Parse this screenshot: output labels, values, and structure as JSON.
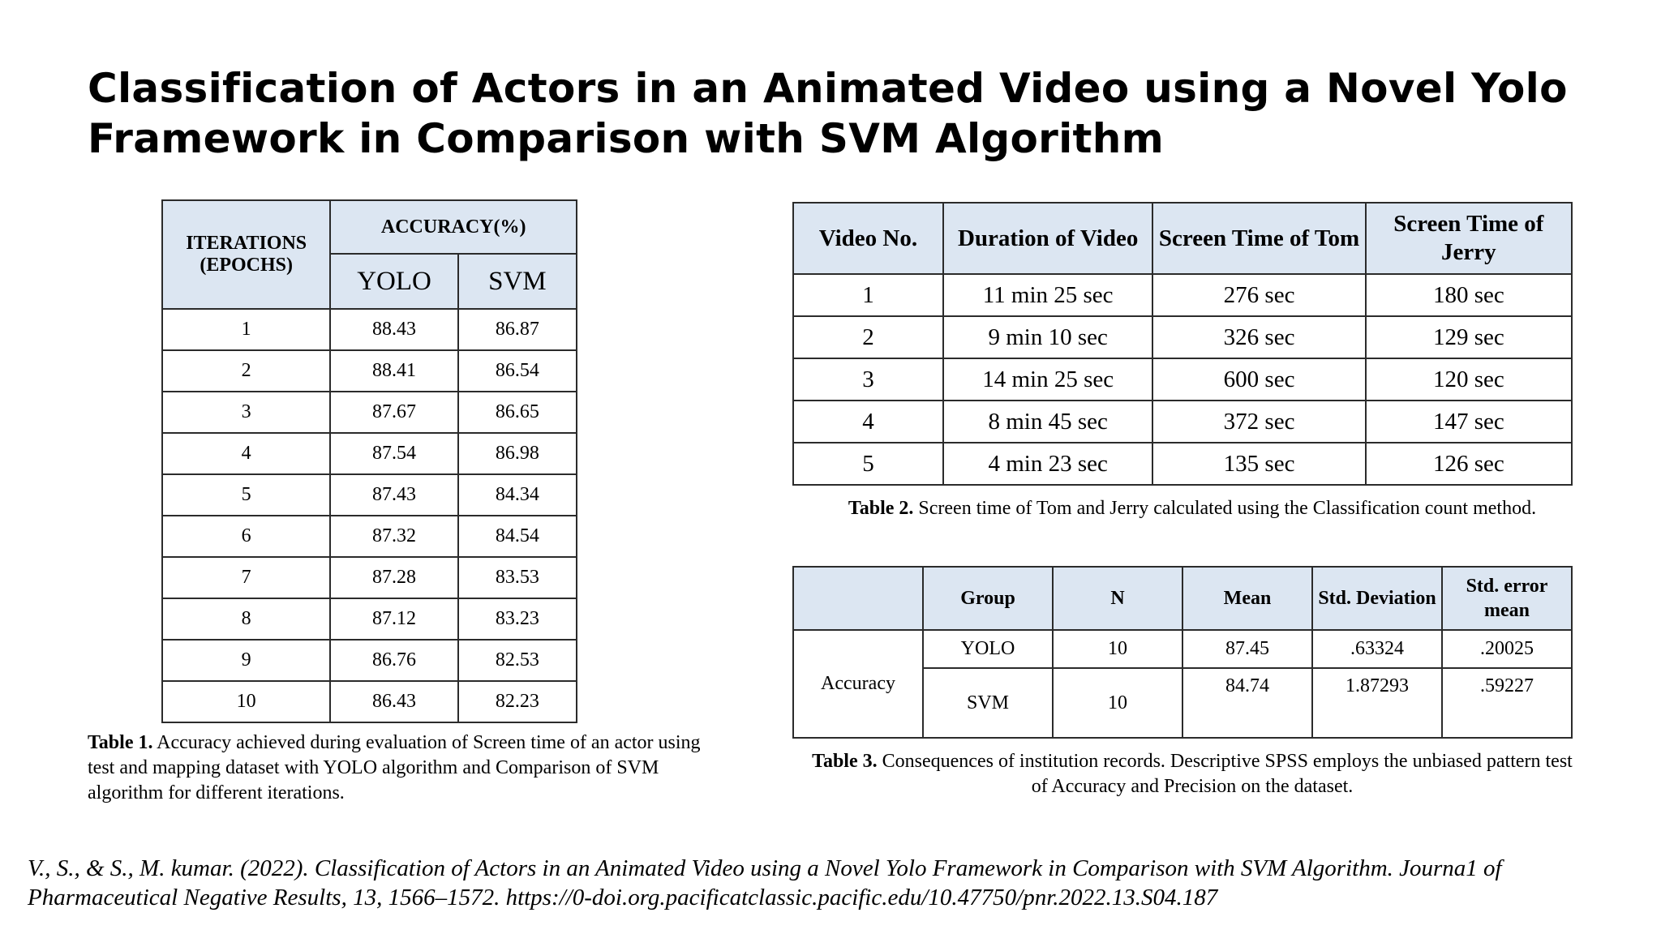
{
  "title": "Classification of Actors in an Animated Video using a Novel Yolo Framework in Comparison with SVM Algorithm",
  "table1": {
    "header_iterations": "ITERATIONS (EPOCHS)",
    "header_accuracy": "ACCURACY(%)",
    "header_yolo": "YOLO",
    "header_svm": "SVM",
    "rows": [
      {
        "iter": "1",
        "yolo": "88.43",
        "svm": "86.87"
      },
      {
        "iter": "2",
        "yolo": "88.41",
        "svm": "86.54"
      },
      {
        "iter": "3",
        "yolo": "87.67",
        "svm": "86.65"
      },
      {
        "iter": "4",
        "yolo": "87.54",
        "svm": "86.98"
      },
      {
        "iter": "5",
        "yolo": "87.43",
        "svm": "84.34"
      },
      {
        "iter": "6",
        "yolo": "87.32",
        "svm": "84.54"
      },
      {
        "iter": "7",
        "yolo": "87.28",
        "svm": "83.53"
      },
      {
        "iter": "8",
        "yolo": "87.12",
        "svm": "83.23"
      },
      {
        "iter": "9",
        "yolo": "86.76",
        "svm": "82.53"
      },
      {
        "iter": "10",
        "yolo": "86.43",
        "svm": "82.23"
      }
    ],
    "caption_label": "Table 1.",
    "caption_text": " Accuracy achieved during evaluation of Screen time of an actor using test and mapping dataset with YOLO algorithm and Comparison of SVM algorithm for different iterations."
  },
  "table2": {
    "headers": [
      "Video No.",
      "Duration of Video",
      "Screen Time of Tom",
      "Screen Time of Jerry"
    ],
    "rows": [
      [
        "1",
        "11 min 25 sec",
        "276 sec",
        "180 sec"
      ],
      [
        "2",
        "9 min 10 sec",
        "326 sec",
        "129 sec"
      ],
      [
        "3",
        "14 min 25 sec",
        "600 sec",
        "120 sec"
      ],
      [
        "4",
        "8 min 45 sec",
        "372 sec",
        "147 sec"
      ],
      [
        "5",
        "4 min 23 sec",
        "135 sec",
        "126 sec"
      ]
    ],
    "caption_label": "Table 2.",
    "caption_text": " Screen time of Tom and Jerry calculated using the Classification count method."
  },
  "table3": {
    "headers": [
      "",
      "Group",
      "N",
      "Mean",
      "Std. Deviation",
      "Std. error mean"
    ],
    "row_label": "Accuracy",
    "rows": [
      {
        "group": "YOLO",
        "n": "10",
        "mean": "87.45",
        "sd": ".63324",
        "se": ".20025"
      },
      {
        "group": "SVM",
        "n": "10",
        "mean": "84.74",
        "sd": "1.87293",
        "se": ".59227"
      }
    ],
    "caption_label": "Table 3.",
    "caption_text": " Consequences of institution records. Descriptive SPSS employs the unbiased pattern test of Accuracy and Precision on the dataset."
  },
  "citation": "V., S., & S., M. kumar. (2022). Classification of Actors in an Animated Video using a Novel Yolo Framework in Comparison with SVM Algorithm. Journa1 of Pharmaceutical Negative Results, 13, 1566–1572. https://0-doi.org.pacificatclassic.pacific.edu/10.47750/pnr.2022.13.S04.187"
}
